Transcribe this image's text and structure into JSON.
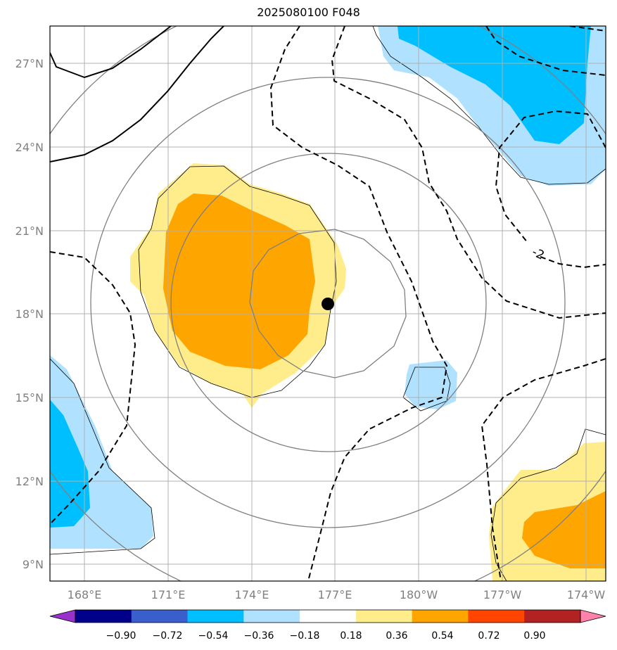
{
  "title": "2025080100 F048",
  "map": {
    "lat_ticks": [
      "27°N",
      "24°N",
      "21°N",
      "18°N",
      "15°N",
      "12°N",
      "9°N"
    ],
    "lon_ticks": [
      "168°E",
      "171°E",
      "174°E",
      "177°E",
      "180°W",
      "177°W",
      "174°W"
    ],
    "contour_label": "-2",
    "center_marker": {
      "lat": 18.4,
      "lon": 176.8
    }
  },
  "colorbar": {
    "tick_labels": [
      "−0.90",
      "−0.72",
      "−0.54",
      "−0.36",
      "−0.18",
      "0.18",
      "0.36",
      "0.54",
      "0.72",
      "0.90"
    ],
    "colors": [
      "#9932cc",
      "#00008b",
      "#3a5fcd",
      "#00bfff",
      "#b0e2ff",
      "#ffffff",
      "#ffec8b",
      "#ffa500",
      "#ff4500",
      "#b22222",
      "#ff82ab"
    ]
  }
}
